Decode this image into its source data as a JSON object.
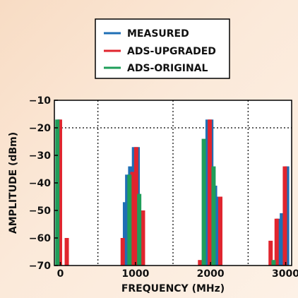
{
  "chart_data": {
    "type": "bar",
    "xlabel": "FREQUENCY (MHz)",
    "ylabel": "AMPLITUDE (dBm)",
    "xlim": [
      -80,
      3080
    ],
    "ylim": [
      -70,
      -10
    ],
    "x_ticks": [
      0,
      1000,
      2000,
      3000
    ],
    "x_tick_labels": [
      "0",
      "1000",
      "2000",
      "3000"
    ],
    "y_ticks": [
      -10,
      -20,
      -30,
      -40,
      -50,
      -60,
      -70
    ],
    "y_tick_labels": [
      "−10",
      "−20",
      "−30",
      "−40",
      "−50",
      "−60",
      "−70"
    ],
    "grid": "dotted",
    "legend_position": "top-center",
    "series": [
      {
        "name": "MEASURED",
        "color": "#1f6fb5",
        "points": [
          [
            -20,
            -17
          ],
          [
            860,
            -47
          ],
          [
            890,
            -37
          ],
          [
            930,
            -34
          ],
          [
            980,
            -27
          ],
          [
            1030,
            -27
          ],
          [
            1960,
            -17
          ],
          [
            2010,
            -17
          ],
          [
            2060,
            -41
          ],
          [
            2110,
            -45
          ],
          [
            2860,
            -69
          ],
          [
            2900,
            -53
          ],
          [
            2950,
            -51
          ],
          [
            3020,
            -34
          ]
        ]
      },
      {
        "name": "ADS-UPGRADED",
        "color": "#e0252e",
        "points": [
          [
            -5,
            -17
          ],
          [
            85,
            -60
          ],
          [
            830,
            -60
          ],
          [
            960,
            -36
          ],
          [
            1010,
            -27
          ],
          [
            1100,
            -50
          ],
          [
            1860,
            -68
          ],
          [
            1990,
            -17
          ],
          [
            2130,
            -45
          ],
          [
            2800,
            -61
          ],
          [
            2880,
            -53
          ],
          [
            2990,
            -34
          ]
        ]
      },
      {
        "name": "ADS-ORIGINAL",
        "color": "#1f9e5a",
        "points": [
          [
            -40,
            -17
          ],
          [
            920,
            -37
          ],
          [
            1050,
            -44
          ],
          [
            1910,
            -24
          ],
          [
            2040,
            -34
          ],
          [
            2840,
            -68
          ]
        ]
      }
    ]
  }
}
